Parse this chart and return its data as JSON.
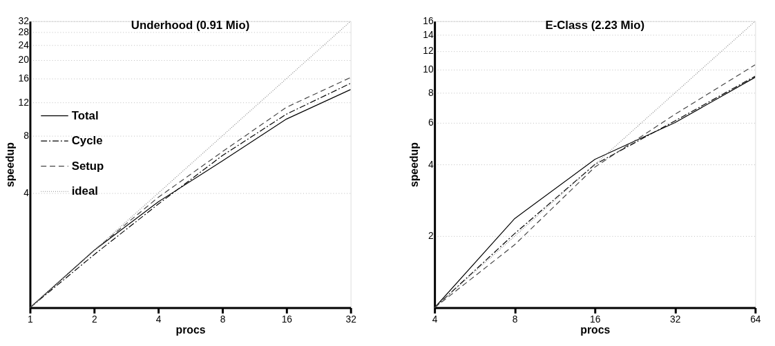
{
  "chart_data": [
    {
      "type": "line",
      "title": "Underhood (0.91 Mio)",
      "xlabel": "procs",
      "ylabel": "speedup",
      "x": [
        1,
        2,
        4,
        8,
        16,
        32
      ],
      "log": "xy",
      "xlim": [
        1,
        32
      ],
      "xticks": [
        1,
        2,
        4,
        8,
        16,
        32
      ],
      "ylim": [
        1,
        32
      ],
      "yticks": [
        4,
        8,
        12,
        16,
        20,
        24,
        28,
        32
      ],
      "grid": "y",
      "legend": "left",
      "series": [
        {
          "name": "Total",
          "color": "#000000",
          "line_style": "solid",
          "values": [
            1,
            2.0,
            3.6,
            5.9,
            9.8,
            14.0
          ]
        },
        {
          "name": "Cycle",
          "color": "#000000",
          "line_style": "dashdot",
          "values": [
            1,
            1.9,
            3.5,
            6.3,
            10.4,
            15.1
          ]
        },
        {
          "name": "Setup",
          "color": "#444444",
          "line_style": "dashed",
          "values": [
            1,
            2.0,
            3.8,
            6.6,
            11.3,
            16.2
          ]
        },
        {
          "name": "ideal",
          "color": "#888888",
          "line_style": "dotted",
          "values": [
            1,
            2,
            4,
            8,
            16,
            32
          ]
        }
      ]
    },
    {
      "type": "line",
      "title": "E-Class (2.23 Mio)",
      "xlabel": "procs",
      "ylabel": "speedup",
      "x": [
        4,
        8,
        16,
        32,
        64
      ],
      "log": "xy",
      "xlim": [
        4,
        64
      ],
      "xticks": [
        4,
        8,
        16,
        32,
        64
      ],
      "ylim": [
        1,
        16
      ],
      "yticks": [
        2,
        4,
        6,
        8,
        10,
        12,
        14,
        16
      ],
      "grid": "y",
      "legend": "left",
      "series": [
        {
          "name": "Total",
          "color": "#000000",
          "line_style": "solid",
          "values": [
            1,
            2.37,
            4.2,
            6.0,
            9.3
          ]
        },
        {
          "name": "Cycle",
          "color": "#000000",
          "line_style": "dashdot",
          "values": [
            1,
            2.05,
            4.0,
            6.1,
            9.4
          ]
        },
        {
          "name": "Setup",
          "color": "#444444",
          "line_style": "dashed",
          "values": [
            1,
            1.84,
            3.9,
            6.5,
            10.5
          ]
        },
        {
          "name": "ideal",
          "color": "#888888",
          "line_style": "dotted",
          "values": [
            1,
            2,
            4,
            8,
            16
          ]
        }
      ]
    }
  ]
}
